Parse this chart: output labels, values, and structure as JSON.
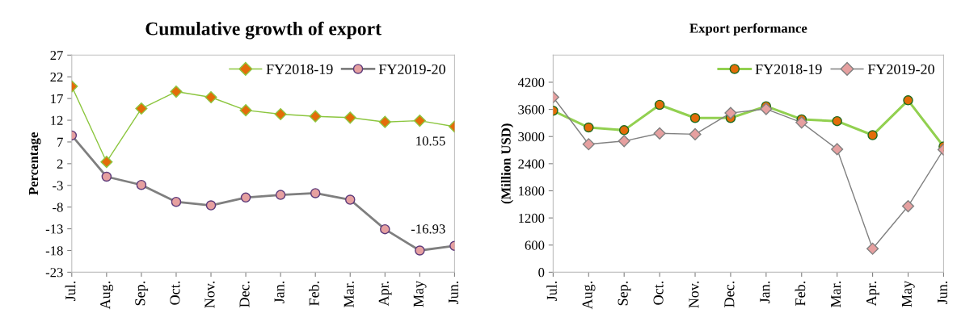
{
  "chart_data": [
    {
      "type": "line",
      "title": "Cumulative growth of export",
      "ylabel": "Percentage",
      "categories": [
        "Jul.",
        "Aug.",
        "Sep.",
        "Oct.",
        "Nov.",
        "Dec.",
        "Jan.",
        "Feb.",
        "Mar.",
        "Apr.",
        "May",
        "Jun."
      ],
      "series": [
        {
          "name": "FY2018-19",
          "color": "#8cc63f",
          "colors": [
            "#e36c09",
            "#e36c09",
            "#e36c09",
            "#e36c09",
            "#e36c09",
            "#e36c09",
            "#e36c09",
            "#e36c09",
            "#e36c09",
            "#e36c09",
            "#e36c09",
            "#e36c09"
          ],
          "marker": "diamond",
          "values": [
            19.8,
            2.4,
            14.7,
            18.6,
            17.3,
            14.3,
            13.4,
            12.9,
            12.6,
            11.6,
            11.9,
            10.55
          ],
          "value_labels": [
            null,
            null,
            null,
            null,
            null,
            null,
            null,
            null,
            null,
            null,
            null,
            "10.55"
          ]
        },
        {
          "name": "FY2019-20",
          "color": "#7f7f7f",
          "colors": [
            "#e6a0a0",
            "#e6a0a0",
            "#e6a0a0",
            "#e6a0a0",
            "#e6a0a0",
            "#e6a0a0",
            "#e6a0a0",
            "#e6a0a0",
            "#e6a0a0",
            "#e6a0a0",
            "#e6a0a0",
            "#e6a0a0"
          ],
          "marker": "circle",
          "values": [
            8.5,
            -1.0,
            -2.9,
            -6.8,
            -7.6,
            -5.8,
            -5.2,
            -4.8,
            -6.3,
            -13.1,
            -18.0,
            -16.93
          ],
          "value_labels": [
            null,
            null,
            null,
            null,
            null,
            null,
            null,
            null,
            null,
            null,
            null,
            "-16.93"
          ]
        }
      ],
      "ylim": [
        -23,
        27
      ],
      "yticks": [
        -23,
        -18,
        -13,
        -8,
        -3,
        2,
        7,
        12,
        17,
        22,
        27
      ],
      "grid": false,
      "legend": "top right"
    },
    {
      "type": "line",
      "title": "Export performance",
      "ylabel": "(Million USD)",
      "categories": [
        "Jul.",
        "Aug.",
        "Sep.",
        "Oct.",
        "Nov.",
        "Dec.",
        "Jan.",
        "Feb.",
        "Mar.",
        "Apr.",
        "May",
        "Jun."
      ],
      "series": [
        {
          "name": "FY2018-19",
          "color": "#92d050",
          "colors": [
            "#e36c09",
            "#e36c09",
            "#e36c09",
            "#e36c09",
            "#e36c09",
            "#e36c09",
            "#e36c09",
            "#e36c09",
            "#e36c09",
            "#e36c09",
            "#e36c09",
            "#e36c09"
          ],
          "marker": "circle",
          "values": [
            3570,
            3200,
            3140,
            3700,
            3410,
            3410,
            3670,
            3380,
            3340,
            3030,
            3800,
            2780
          ]
        },
        {
          "name": "FY2019-20",
          "color": "#808080",
          "colors": [
            "#e6a0a0",
            "#e6a0a0",
            "#e6a0a0",
            "#e6a0a0",
            "#e6a0a0",
            "#e6a0a0",
            "#e6a0a0",
            "#e6a0a0",
            "#e6a0a0",
            "#e6a0a0",
            "#e6a0a0",
            "#e6a0a0"
          ],
          "marker": "diamond",
          "values": [
            3870,
            2830,
            2900,
            3070,
            3050,
            3520,
            3610,
            3310,
            2720,
            520,
            1460,
            2710
          ]
        }
      ],
      "ylim": [
        0,
        4800
      ],
      "yticks": [
        0,
        600,
        1200,
        1800,
        2400,
        3000,
        3600,
        4200
      ],
      "grid": false,
      "legend": "top right"
    }
  ]
}
